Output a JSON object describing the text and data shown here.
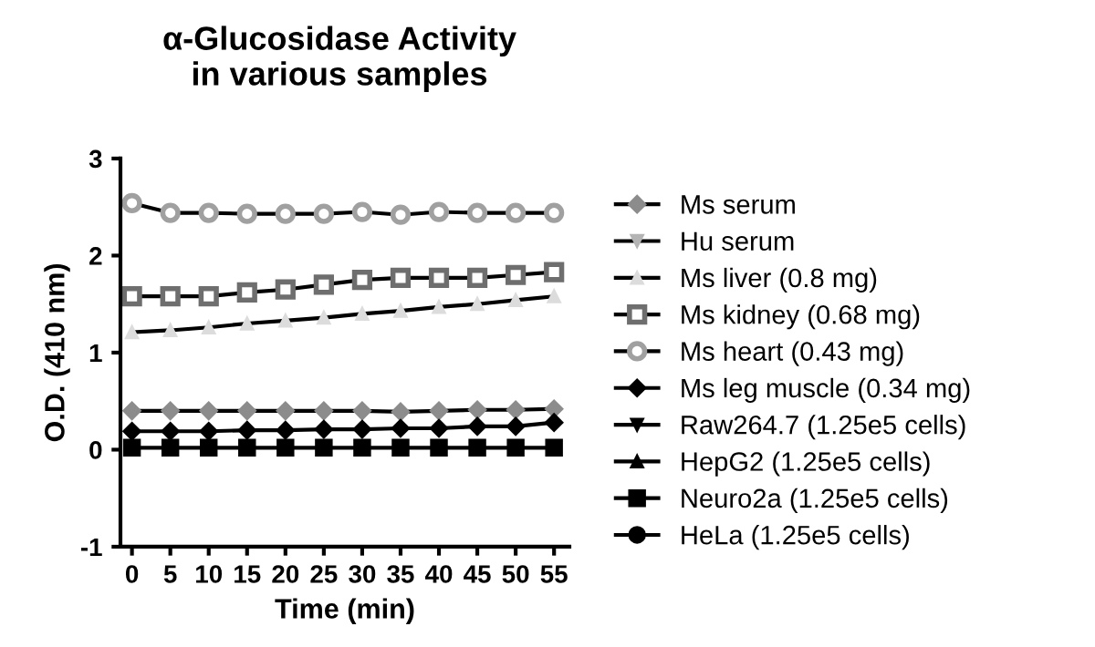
{
  "chart_data": {
    "type": "line",
    "title": "α-Glucosidase Activity\nin various samples",
    "xlabel": "Time (min)",
    "ylabel": "O.D. (410 nm)",
    "x": [
      0,
      5,
      10,
      15,
      20,
      25,
      30,
      35,
      40,
      45,
      50,
      55
    ],
    "xlim": [
      -1.5,
      57
    ],
    "xticks": [
      0,
      5,
      10,
      15,
      20,
      25,
      30,
      35,
      40,
      45,
      50,
      55
    ],
    "ylim": [
      -1,
      3
    ],
    "yticks": [
      -1,
      0,
      1,
      2,
      3
    ],
    "grid": false,
    "legend": "right",
    "series": [
      {
        "name": "Ms serum",
        "color": "#8c8c8c",
        "marker": "diamond",
        "values": [
          0.4,
          0.4,
          0.4,
          0.4,
          0.4,
          0.4,
          0.4,
          0.39,
          0.4,
          0.41,
          0.41,
          0.42
        ]
      },
      {
        "name": "Hu serum",
        "color": "#b4b4b4",
        "marker": "triangle_down",
        "values": [
          null,
          null,
          null,
          null,
          null,
          null,
          null,
          null,
          null,
          null,
          null,
          null
        ]
      },
      {
        "name": "Ms liver (0.8 mg)",
        "color": "#dcdcdc",
        "marker": "triangle",
        "values": [
          1.21,
          1.23,
          1.26,
          1.3,
          1.33,
          1.36,
          1.4,
          1.43,
          1.47,
          1.5,
          1.54,
          1.58
        ]
      },
      {
        "name": "Ms kidney (0.68 mg)",
        "color": "#6e6e6e",
        "marker": "square_open",
        "values": [
          1.58,
          1.58,
          1.58,
          1.62,
          1.65,
          1.7,
          1.75,
          1.77,
          1.77,
          1.77,
          1.8,
          1.83
        ]
      },
      {
        "name": "Ms heart (0.43 mg)",
        "color": "#a0a0a0",
        "marker": "circle_open",
        "values": [
          2.54,
          2.44,
          2.44,
          2.43,
          2.43,
          2.43,
          2.45,
          2.42,
          2.45,
          2.44,
          2.44,
          2.44
        ]
      },
      {
        "name": "Ms leg muscle (0.34 mg)",
        "color": "#000000",
        "marker": "diamond",
        "values": [
          0.19,
          0.19,
          0.19,
          0.2,
          0.2,
          0.21,
          0.21,
          0.22,
          0.22,
          0.24,
          0.24,
          0.28
        ]
      },
      {
        "name": "Raw264.7 (1.25e5 cells)",
        "color": "#000000",
        "marker": "triangle_down",
        "values": [
          null,
          null,
          null,
          null,
          null,
          null,
          null,
          null,
          null,
          null,
          null,
          null
        ]
      },
      {
        "name": "HepG2 (1.25e5 cells)",
        "color": "#000000",
        "marker": "triangle",
        "values": [
          null,
          null,
          null,
          null,
          null,
          null,
          null,
          null,
          null,
          null,
          null,
          null
        ]
      },
      {
        "name": "Neuro2a (1.25e5 cells)",
        "color": "#000000",
        "marker": "square",
        "values": [
          0.02,
          0.02,
          0.02,
          0.02,
          0.02,
          0.02,
          0.02,
          0.02,
          0.02,
          0.02,
          0.02,
          0.02
        ]
      },
      {
        "name": "HeLa (1.25e5 cells)",
        "color": "#000000",
        "marker": "circle",
        "values": [
          null,
          null,
          null,
          null,
          null,
          null,
          null,
          null,
          null,
          null,
          null,
          null
        ]
      }
    ]
  }
}
